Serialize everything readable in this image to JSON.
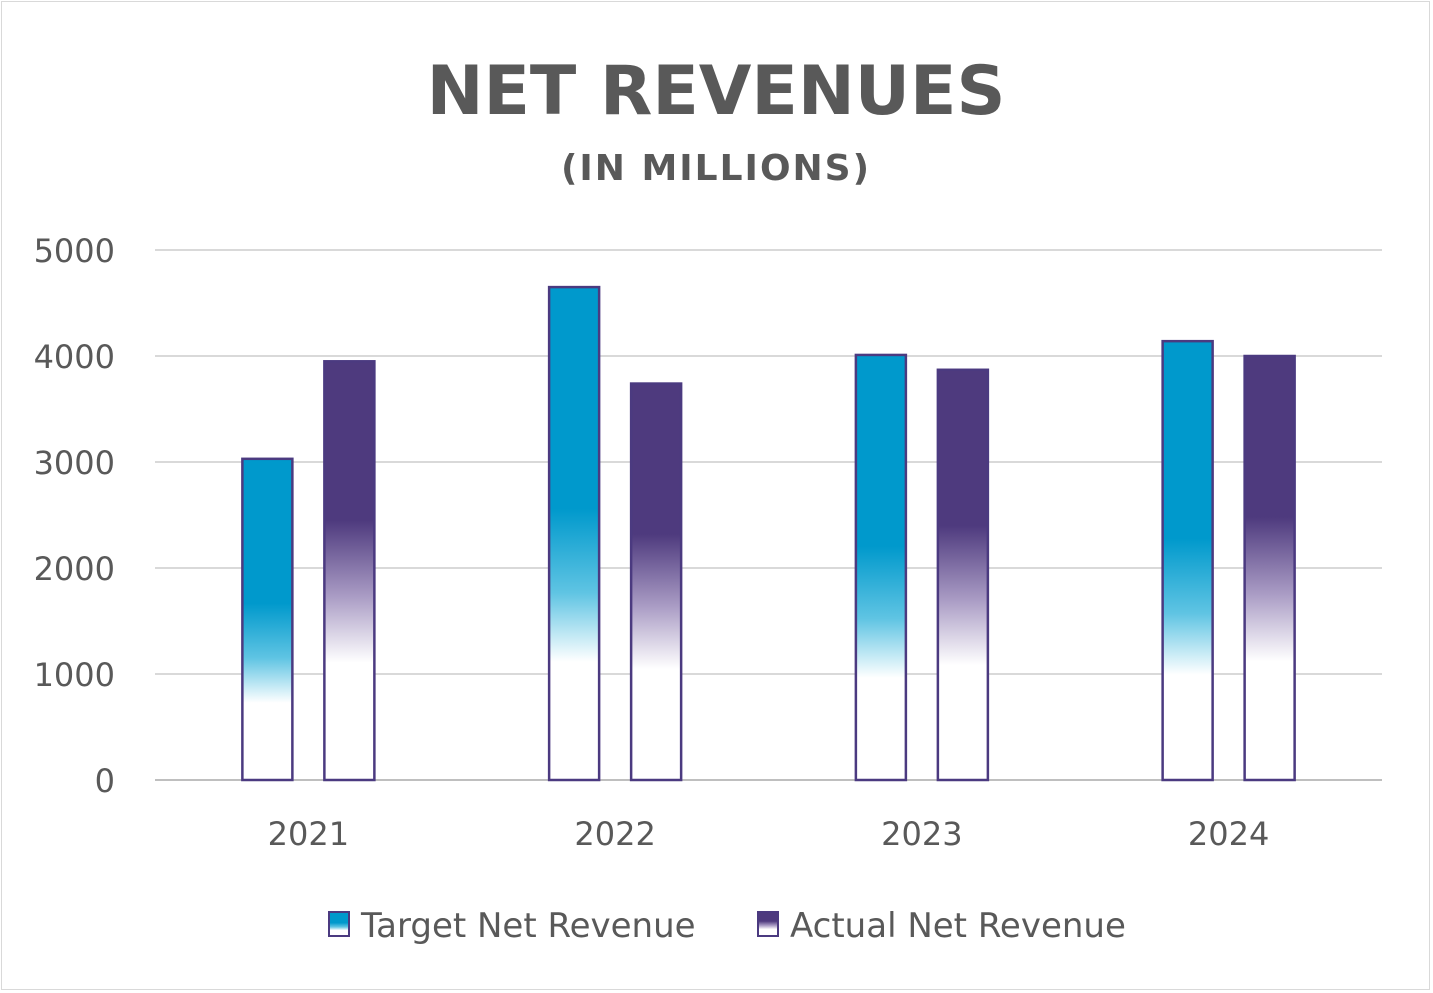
{
  "chart_data": {
    "type": "bar",
    "title": "NET REVENUES",
    "subtitle": "(IN MILLIONS)",
    "xlabel": "",
    "ylabel": "",
    "categories": [
      "2021",
      "2022",
      "2023",
      "2024"
    ],
    "series": [
      {
        "name": "Target Net Revenue",
        "values": [
          3030,
          4650,
          4010,
          4140
        ],
        "color": "#0099CC"
      },
      {
        "name": "Actual Net Revenue",
        "values": [
          3950,
          3740,
          3870,
          4000
        ],
        "color": "#4E3A7E"
      }
    ],
    "ylim": [
      0,
      5000
    ],
    "yticks": [
      "0",
      "1000",
      "2000",
      "3000",
      "4000",
      "5000"
    ],
    "grid": true,
    "legend": "bottom",
    "bar_border_color": "#4B3A80",
    "fill": "gradient fading to white toward base"
  }
}
